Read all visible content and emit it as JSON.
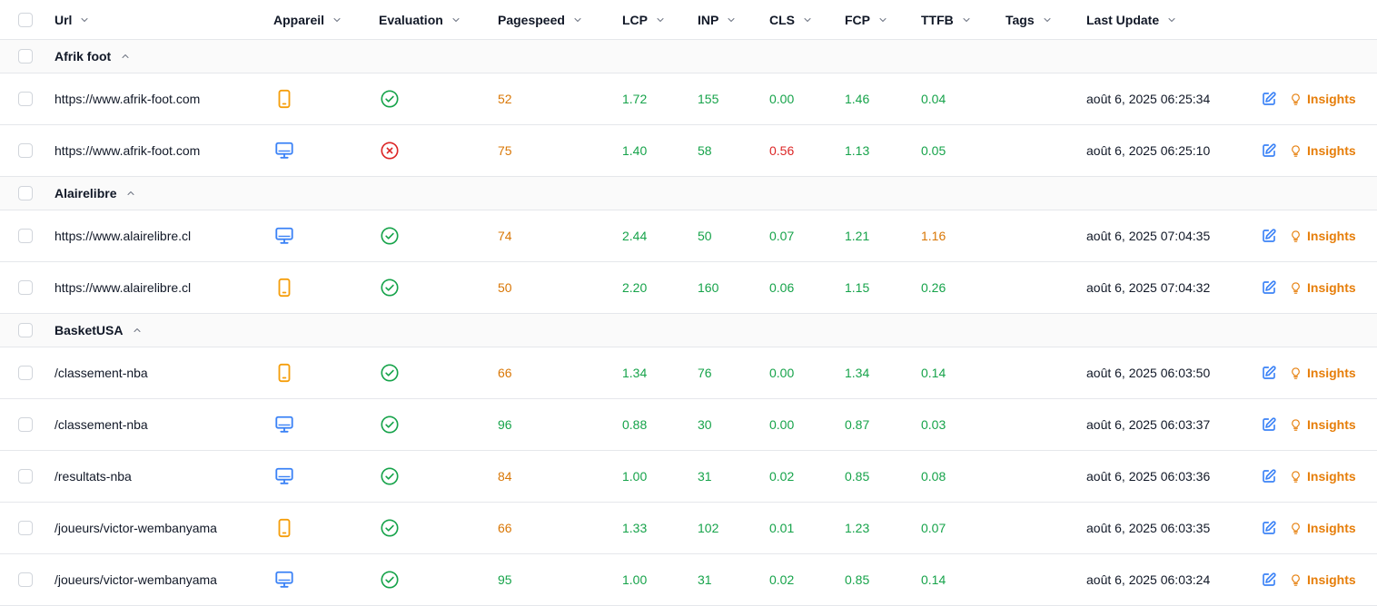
{
  "columns": [
    "Url",
    "Appareil",
    "Evaluation",
    "Pagespeed",
    "LCP",
    "INP",
    "CLS",
    "FCP",
    "TTFB",
    "Tags",
    "Last Update"
  ],
  "action_label": "Insights",
  "colors": {
    "good": "#16a34a",
    "warn": "#d97706",
    "bad": "#dc2626",
    "mobile": "#f59e0b",
    "desktop": "#3b82f6",
    "accent": "#e67e0a"
  },
  "groups": [
    {
      "name": "Afrik foot",
      "rows": [
        {
          "url": "https://www.afrik-foot.com",
          "device": "mobile",
          "evaluation": "pass",
          "pagespeed": "52",
          "pagespeed_status": "warn",
          "lcp": "1.72",
          "lcp_status": "good",
          "inp": "155",
          "inp_status": "good",
          "cls": "0.00",
          "cls_status": "good",
          "fcp": "1.46",
          "fcp_status": "good",
          "ttfb": "0.04",
          "ttfb_status": "good",
          "tags": "",
          "last_update": "août 6, 2025 06:25:34"
        },
        {
          "url": "https://www.afrik-foot.com",
          "device": "desktop",
          "evaluation": "fail",
          "pagespeed": "75",
          "pagespeed_status": "warn",
          "lcp": "1.40",
          "lcp_status": "good",
          "inp": "58",
          "inp_status": "good",
          "cls": "0.56",
          "cls_status": "bad",
          "fcp": "1.13",
          "fcp_status": "good",
          "ttfb": "0.05",
          "ttfb_status": "good",
          "tags": "",
          "last_update": "août 6, 2025 06:25:10"
        }
      ]
    },
    {
      "name": "Alairelibre",
      "rows": [
        {
          "url": "https://www.alairelibre.cl",
          "device": "desktop",
          "evaluation": "pass",
          "pagespeed": "74",
          "pagespeed_status": "warn",
          "lcp": "2.44",
          "lcp_status": "good",
          "inp": "50",
          "inp_status": "good",
          "cls": "0.07",
          "cls_status": "good",
          "fcp": "1.21",
          "fcp_status": "good",
          "ttfb": "1.16",
          "ttfb_status": "warn",
          "tags": "",
          "last_update": "août 6, 2025 07:04:35"
        },
        {
          "url": "https://www.alairelibre.cl",
          "device": "mobile",
          "evaluation": "pass",
          "pagespeed": "50",
          "pagespeed_status": "warn",
          "lcp": "2.20",
          "lcp_status": "good",
          "inp": "160",
          "inp_status": "good",
          "cls": "0.06",
          "cls_status": "good",
          "fcp": "1.15",
          "fcp_status": "good",
          "ttfb": "0.26",
          "ttfb_status": "good",
          "tags": "",
          "last_update": "août 6, 2025 07:04:32"
        }
      ]
    },
    {
      "name": "BasketUSA",
      "rows": [
        {
          "url": "/classement-nba",
          "device": "mobile",
          "evaluation": "pass",
          "pagespeed": "66",
          "pagespeed_status": "warn",
          "lcp": "1.34",
          "lcp_status": "good",
          "inp": "76",
          "inp_status": "good",
          "cls": "0.00",
          "cls_status": "good",
          "fcp": "1.34",
          "fcp_status": "good",
          "ttfb": "0.14",
          "ttfb_status": "good",
          "tags": "",
          "last_update": "août 6, 2025 06:03:50"
        },
        {
          "url": "/classement-nba",
          "device": "desktop",
          "evaluation": "pass",
          "pagespeed": "96",
          "pagespeed_status": "good",
          "lcp": "0.88",
          "lcp_status": "good",
          "inp": "30",
          "inp_status": "good",
          "cls": "0.00",
          "cls_status": "good",
          "fcp": "0.87",
          "fcp_status": "good",
          "ttfb": "0.03",
          "ttfb_status": "good",
          "tags": "",
          "last_update": "août 6, 2025 06:03:37"
        },
        {
          "url": "/resultats-nba",
          "device": "desktop",
          "evaluation": "pass",
          "pagespeed": "84",
          "pagespeed_status": "warn",
          "lcp": "1.00",
          "lcp_status": "good",
          "inp": "31",
          "inp_status": "good",
          "cls": "0.02",
          "cls_status": "good",
          "fcp": "0.85",
          "fcp_status": "good",
          "ttfb": "0.08",
          "ttfb_status": "good",
          "tags": "",
          "last_update": "août 6, 2025 06:03:36"
        },
        {
          "url": "/joueurs/victor-wembanyama",
          "device": "mobile",
          "evaluation": "pass",
          "pagespeed": "66",
          "pagespeed_status": "warn",
          "lcp": "1.33",
          "lcp_status": "good",
          "inp": "102",
          "inp_status": "good",
          "cls": "0.01",
          "cls_status": "good",
          "fcp": "1.23",
          "fcp_status": "good",
          "ttfb": "0.07",
          "ttfb_status": "good",
          "tags": "",
          "last_update": "août 6, 2025 06:03:35"
        },
        {
          "url": "/joueurs/victor-wembanyama",
          "device": "desktop",
          "evaluation": "pass",
          "pagespeed": "95",
          "pagespeed_status": "good",
          "lcp": "1.00",
          "lcp_status": "good",
          "inp": "31",
          "inp_status": "good",
          "cls": "0.02",
          "cls_status": "good",
          "fcp": "0.85",
          "fcp_status": "good",
          "ttfb": "0.14",
          "ttfb_status": "good",
          "tags": "",
          "last_update": "août 6, 2025 06:03:24"
        }
      ]
    }
  ]
}
